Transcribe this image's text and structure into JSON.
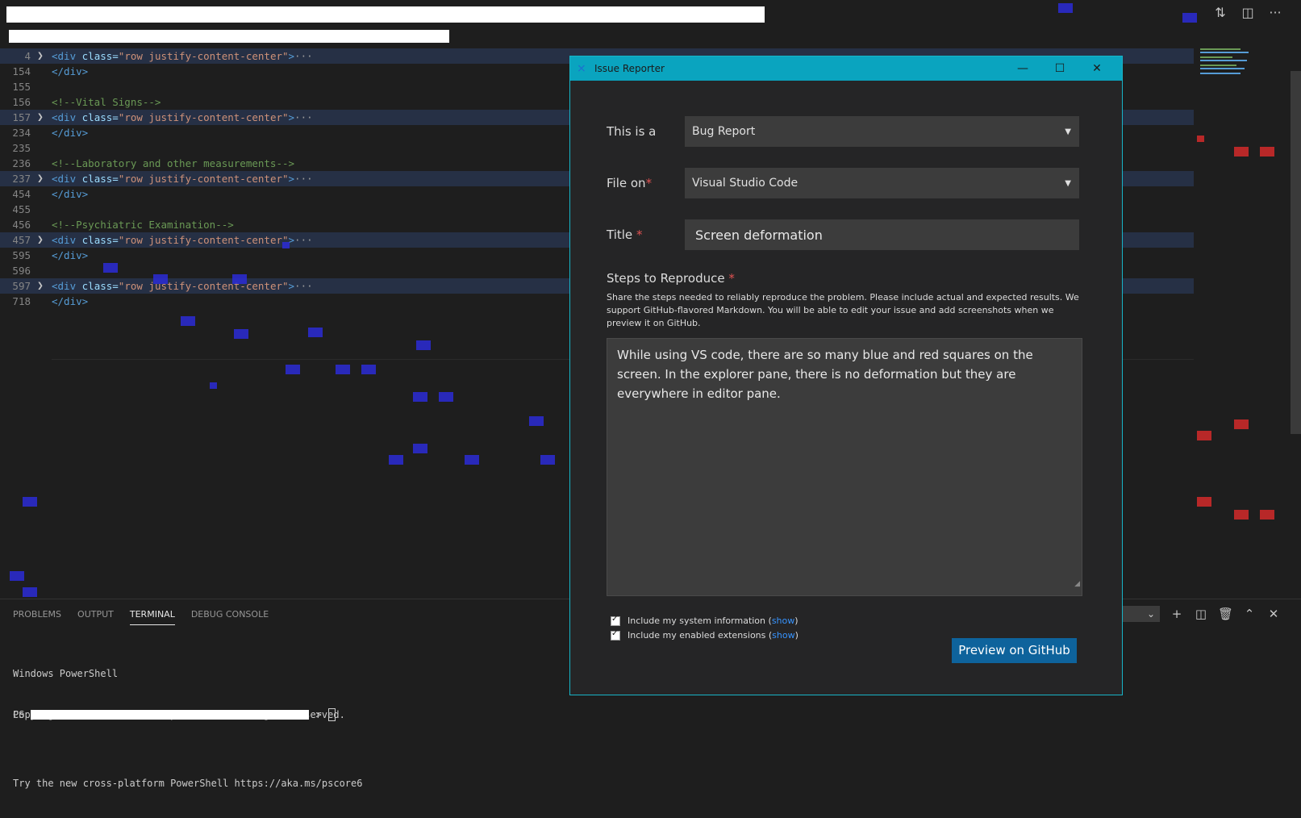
{
  "top": {
    "icons": [
      "compare-changes-icon",
      "split-editor-icon",
      "more-actions-icon"
    ]
  },
  "editor": {
    "lines": [
      {
        "num": "4",
        "folded": true,
        "kind": "div"
      },
      {
        "num": "154",
        "folded": false,
        "kind": "close"
      },
      {
        "num": "155",
        "folded": false,
        "kind": "blank"
      },
      {
        "num": "156",
        "folded": false,
        "kind": "comment",
        "text": "<!--Vital Signs-->"
      },
      {
        "num": "157",
        "folded": true,
        "kind": "div"
      },
      {
        "num": "234",
        "folded": false,
        "kind": "close"
      },
      {
        "num": "235",
        "folded": false,
        "kind": "blank"
      },
      {
        "num": "236",
        "folded": false,
        "kind": "comment",
        "text": "<!--Laboratory and other measurements-->"
      },
      {
        "num": "237",
        "folded": true,
        "kind": "div"
      },
      {
        "num": "454",
        "folded": false,
        "kind": "close"
      },
      {
        "num": "455",
        "folded": false,
        "kind": "blank"
      },
      {
        "num": "456",
        "folded": false,
        "kind": "comment",
        "text": "<!--Psychiatric Examination-->"
      },
      {
        "num": "457",
        "folded": true,
        "kind": "div"
      },
      {
        "num": "595",
        "folded": false,
        "kind": "close"
      },
      {
        "num": "596",
        "folded": false,
        "kind": "blank"
      },
      {
        "num": "597",
        "folded": true,
        "kind": "div"
      },
      {
        "num": "718",
        "folded": false,
        "kind": "close"
      }
    ],
    "div_open": "<div",
    "class_attr": "class=",
    "class_value": "\"row justify-content-center\"",
    "gt": ">",
    "ellipsis": "···",
    "close_tag": "</div>"
  },
  "panel": {
    "tabs": [
      {
        "label": "PROBLEMS",
        "active": false
      },
      {
        "label": "OUTPUT",
        "active": false
      },
      {
        "label": "TERMINAL",
        "active": true
      },
      {
        "label": "DEBUG CONSOLE",
        "active": false
      }
    ],
    "terminal_lines": [
      "Windows PowerShell",
      "Copyright (C) Microsoft Corporation. All rights reserved.",
      "",
      "Try the new cross-platform PowerShell https://aka.ms/pscore6"
    ],
    "prompt_prefix": "PS",
    "prompt_suffix": ">",
    "actions": [
      "add-terminal-icon",
      "split-terminal-icon",
      "trash-icon",
      "maximize-panel-icon",
      "close-panel-icon"
    ]
  },
  "dialog": {
    "title": "Issue Reporter",
    "window_buttons": {
      "minimize": "—",
      "maximize": "☐",
      "close": "✕"
    },
    "type_label": "This is a",
    "type_value": "Bug Report",
    "file_on_label": "File on",
    "file_on_value": "Visual Studio Code",
    "title_label": "Title",
    "title_value": "Screen deformation",
    "required_mark": "*",
    "steps_label": "Steps to Reproduce",
    "steps_description": "Share the steps needed to reliably reproduce the problem. Please include actual and expected results. We support GitHub-flavored Markdown. You will be able to edit your issue and add screenshots when we preview it on GitHub.",
    "steps_text": "While using VS code, there are so many blue and red squares on the screen. In the explorer pane, there is no deformation but they are everywhere in editor pane.",
    "include_system_info": "Include my system information (",
    "include_extensions": "Include my enabled extensions (",
    "show_link": "show",
    "close_paren": ")",
    "preview_button": "Preview on GitHub"
  },
  "colors": {
    "accent_titlebar": "#0aa4bf",
    "button_blue": "#0e639c",
    "glitch_blue": "#2b2bd6",
    "glitch_red": "#d42a2a"
  }
}
